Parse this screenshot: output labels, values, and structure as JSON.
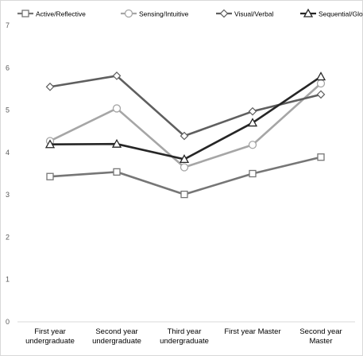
{
  "chart_data": {
    "type": "line",
    "categories": [
      [
        "First year",
        "undergraduate"
      ],
      [
        "Second year",
        "undergraduate"
      ],
      [
        "Third year",
        "undergraduate"
      ],
      [
        "First year Master"
      ],
      [
        "Second year",
        "Master"
      ]
    ],
    "ylim": [
      0,
      7
    ],
    "yticks": [
      "0",
      "1",
      "2",
      "3",
      "4",
      "5",
      "6",
      "7"
    ],
    "grid": false,
    "legend_position": "top",
    "series": [
      {
        "name": "Active/Reflective",
        "values": [
          3.43,
          3.54,
          3.01,
          3.5,
          3.89
        ],
        "color": "#767676",
        "marker": "square"
      },
      {
        "name": "Sensing/Intuitive",
        "values": [
          4.27,
          5.04,
          3.65,
          4.18,
          5.63
        ],
        "color": "#a6a6a6",
        "marker": "circle"
      },
      {
        "name": "Visual/Verbal",
        "values": [
          5.55,
          5.81,
          4.39,
          4.97,
          5.37
        ],
        "color": "#5f5f5f",
        "marker": "diamond"
      },
      {
        "name": "Sequential/Global",
        "values": [
          4.19,
          4.2,
          3.84,
          4.7,
          5.79
        ],
        "color": "#262626",
        "marker": "triangle"
      }
    ]
  }
}
